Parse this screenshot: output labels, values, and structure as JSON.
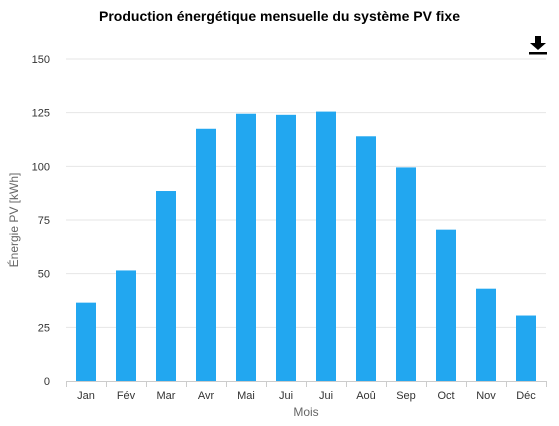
{
  "chart_data": {
    "type": "bar",
    "title": "Production énergétique mensuelle du système PV fixe",
    "xlabel": "Mois",
    "ylabel": "Énergie PV [kWh]",
    "categories": [
      "Jan",
      "Fév",
      "Mar",
      "Avr",
      "Mai",
      "Jui",
      "Jui",
      "Aoû",
      "Sep",
      "Oct",
      "Nov",
      "Déc"
    ],
    "values": [
      36.5,
      51.5,
      88.5,
      117.5,
      124.5,
      124,
      125.5,
      114,
      99.5,
      70.5,
      43,
      30.5
    ],
    "ylim": [
      0,
      150
    ],
    "yticks": [
      "0",
      "25",
      "50",
      "75",
      "100",
      "125",
      "150"
    ],
    "grid": true,
    "bar_color": "#22a7f0",
    "grid_color": "#e6e6e6",
    "axis_color": "#cccccc"
  },
  "toolbar": {
    "download_icon": "download-icon"
  }
}
